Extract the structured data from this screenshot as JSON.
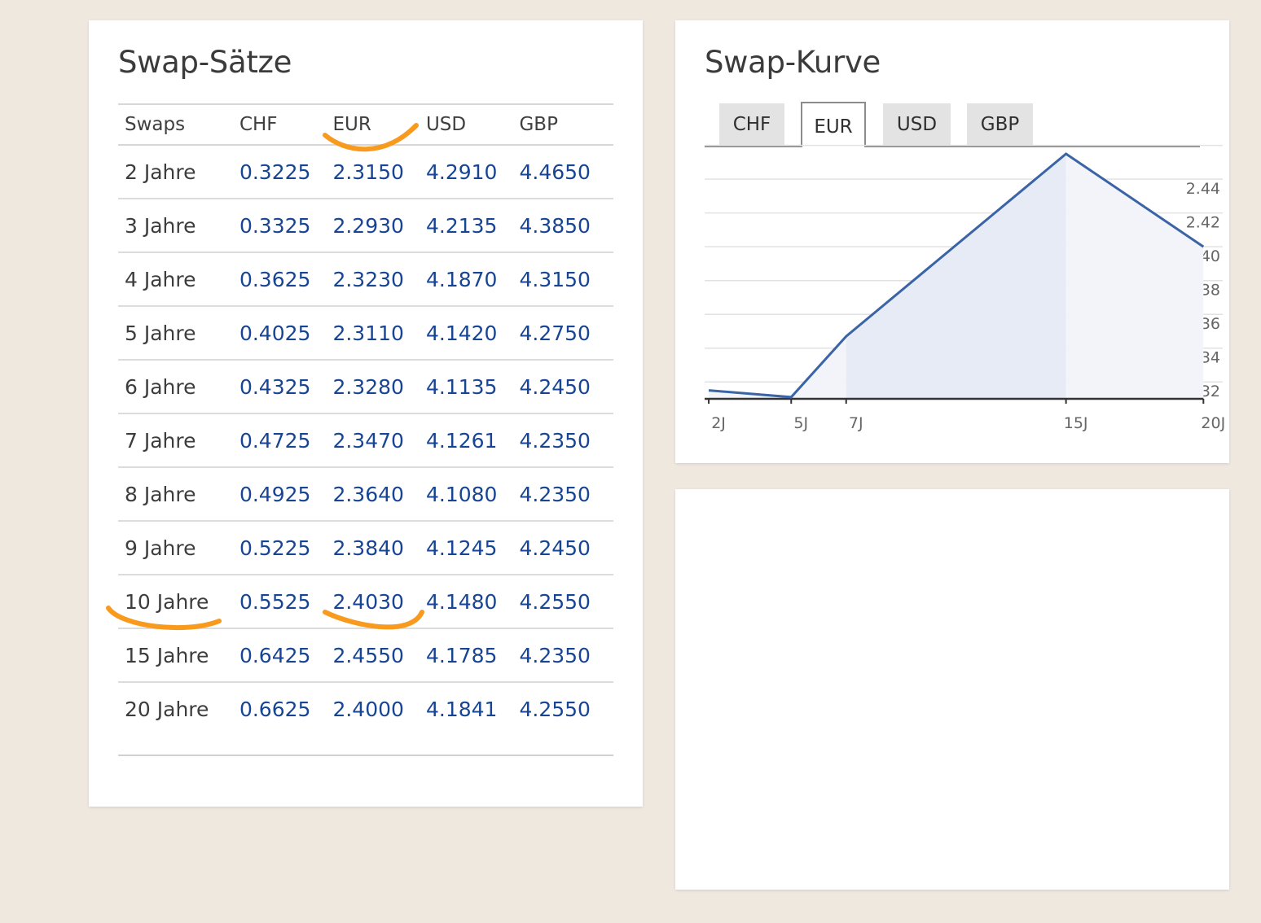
{
  "rates_panel": {
    "title": "Swap-Sätze",
    "columns": [
      "Swaps",
      "CHF",
      "EUR",
      "USD",
      "GBP"
    ],
    "rows": [
      {
        "term": "2 Jahre",
        "chf": "0.3225",
        "eur": "2.3150",
        "usd": "4.2910",
        "gbp": "4.4650"
      },
      {
        "term": "3 Jahre",
        "chf": "0.3325",
        "eur": "2.2930",
        "usd": "4.2135",
        "gbp": "4.3850"
      },
      {
        "term": "4 Jahre",
        "chf": "0.3625",
        "eur": "2.3230",
        "usd": "4.1870",
        "gbp": "4.3150"
      },
      {
        "term": "5 Jahre",
        "chf": "0.4025",
        "eur": "2.3110",
        "usd": "4.1420",
        "gbp": "4.2750"
      },
      {
        "term": "6 Jahre",
        "chf": "0.4325",
        "eur": "2.3280",
        "usd": "4.1135",
        "gbp": "4.2450"
      },
      {
        "term": "7 Jahre",
        "chf": "0.4725",
        "eur": "2.3470",
        "usd": "4.1261",
        "gbp": "4.2350"
      },
      {
        "term": "8 Jahre",
        "chf": "0.4925",
        "eur": "2.3640",
        "usd": "4.1080",
        "gbp": "4.2350"
      },
      {
        "term": "9 Jahre",
        "chf": "0.5225",
        "eur": "2.3840",
        "usd": "4.1245",
        "gbp": "4.2450"
      },
      {
        "term": "10 Jahre",
        "chf": "0.5525",
        "eur": "2.4030",
        "usd": "4.1480",
        "gbp": "4.2550"
      },
      {
        "term": "15 Jahre",
        "chf": "0.6425",
        "eur": "2.4550",
        "usd": "4.1785",
        "gbp": "4.2350"
      },
      {
        "term": "20 Jahre",
        "chf": "0.6625",
        "eur": "2.4000",
        "usd": "4.1841",
        "gbp": "4.2550"
      }
    ]
  },
  "curve_panel": {
    "title": "Swap-Kurve",
    "tabs": [
      {
        "label": "CHF",
        "active": false
      },
      {
        "label": "EUR",
        "active": true
      },
      {
        "label": "USD",
        "active": false
      },
      {
        "label": "GBP",
        "active": false
      }
    ]
  },
  "colors": {
    "background": "#efe8df",
    "value_text": "#174593",
    "line": "#3a64a5",
    "annotation": "#f79a1e"
  },
  "chart_data": {
    "type": "area",
    "x_labels": [
      "2J",
      "5J",
      "7J",
      "15J",
      "20J"
    ],
    "x": [
      2,
      5,
      7,
      15,
      20
    ],
    "series": [
      {
        "values": [
          2.315,
          2.311,
          2.347,
          2.455,
          2.4
        ]
      }
    ],
    "y_ticks": [
      2.32,
      2.34,
      2.36,
      2.38,
      2.4,
      2.42,
      2.44
    ],
    "y_tick_labels": [
      "2.32",
      "2.34",
      "2.36",
      "2.38",
      "2.40",
      "2.42",
      "2.44"
    ],
    "ylim": [
      2.31,
      2.455
    ],
    "y_axis_side": "right",
    "grid": true
  },
  "annotations": [
    {
      "type": "hand-drawn-underline",
      "target": "header EUR"
    },
    {
      "type": "hand-drawn-underline",
      "target": "10 Jahre"
    },
    {
      "type": "hand-drawn-underline",
      "target": "10 Jahre EUR 2.4030"
    }
  ]
}
